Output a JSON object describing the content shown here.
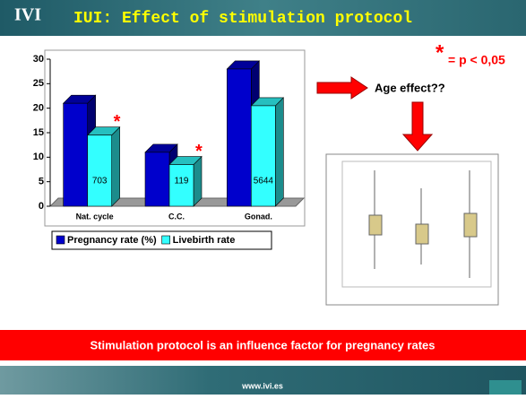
{
  "slide": {
    "logo": "IVI",
    "title": "IUI: Effect of stimulation protocol",
    "significance_note": "= p < 0,05",
    "significance_symbol": "*",
    "arrow_label": "Age effect??",
    "conclusion": "Stimulation protocol is an influence factor for pregnancy rates",
    "footer": "www.ivi.es"
  },
  "chart_data": {
    "type": "bar3d",
    "categories": [
      "Nat. cycle",
      "C.C.",
      "Gonad."
    ],
    "series": [
      {
        "name": "Pregnancy rate (%)",
        "color": "#0000cc",
        "values": [
          21,
          11,
          28
        ]
      },
      {
        "name": "Livebirth rate",
        "color": "#33ffff",
        "values": [
          14.5,
          8.5,
          20.5
        ],
        "bar_labels": [
          "703",
          "119",
          "5644"
        ],
        "markers": [
          "*",
          "*",
          null
        ]
      }
    ],
    "ylim": [
      0,
      30
    ],
    "yticks": [
      0,
      5,
      10,
      15,
      20,
      25,
      30
    ],
    "legend": "bottom"
  }
}
